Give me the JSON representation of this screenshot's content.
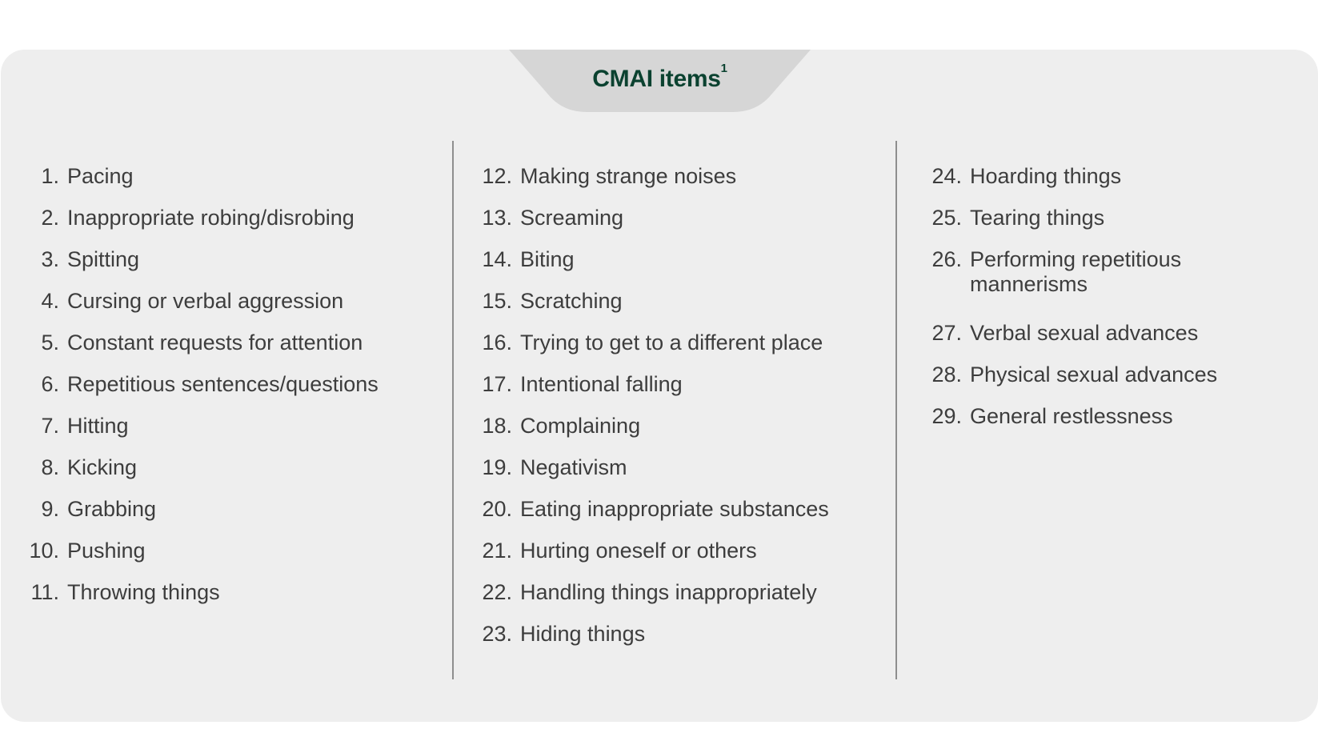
{
  "header": {
    "title": "CMAI items",
    "footnote_mark": "1"
  },
  "columns": [
    {
      "items": [
        {
          "num": "1.",
          "label": "Pacing"
        },
        {
          "num": "2.",
          "label": "Inappropriate robing/disrobing"
        },
        {
          "num": "3.",
          "label": "Spitting"
        },
        {
          "num": "4.",
          "label": "Cursing or verbal aggression"
        },
        {
          "num": "5.",
          "label": "Constant requests for attention"
        },
        {
          "num": "6.",
          "label": "Repetitious sentences/questions"
        },
        {
          "num": "7.",
          "label": "Hitting"
        },
        {
          "num": "8.",
          "label": "Kicking"
        },
        {
          "num": "9.",
          "label": "Grabbing"
        },
        {
          "num": "10.",
          "label": "Pushing"
        },
        {
          "num": "11.",
          "label": "Throwing things"
        }
      ]
    },
    {
      "items": [
        {
          "num": "12.",
          "label": "Making strange noises"
        },
        {
          "num": "13.",
          "label": "Screaming"
        },
        {
          "num": "14.",
          "label": "Biting"
        },
        {
          "num": "15.",
          "label": "Scratching"
        },
        {
          "num": "16.",
          "label": "Trying to get to a different place"
        },
        {
          "num": "17.",
          "label": "Intentional falling"
        },
        {
          "num": "18.",
          "label": "Complaining"
        },
        {
          "num": "19.",
          "label": "Negativism"
        },
        {
          "num": "20.",
          "label": "Eating inappropriate substances"
        },
        {
          "num": "21.",
          "label": "Hurting oneself or others"
        },
        {
          "num": "22.",
          "label": "Handling things inappropriately"
        },
        {
          "num": "23.",
          "label": "Hiding things"
        }
      ]
    },
    {
      "items": [
        {
          "num": "24.",
          "label": "Hoarding things"
        },
        {
          "num": "25.",
          "label": "Tearing things"
        },
        {
          "num": "26.",
          "label": "Performing repetitious mannerisms"
        },
        {
          "num": "27.",
          "label": "Verbal sexual advances"
        },
        {
          "num": "28.",
          "label": "Physical sexual advances"
        },
        {
          "num": "29.",
          "label": "General restlessness"
        }
      ]
    }
  ],
  "colors": {
    "panel_background": "#eeeeee",
    "tab_background": "#d6d6d6",
    "title_color": "#0b4230",
    "text_color": "#3d3d3d",
    "divider_color": "#8e8e8e"
  }
}
